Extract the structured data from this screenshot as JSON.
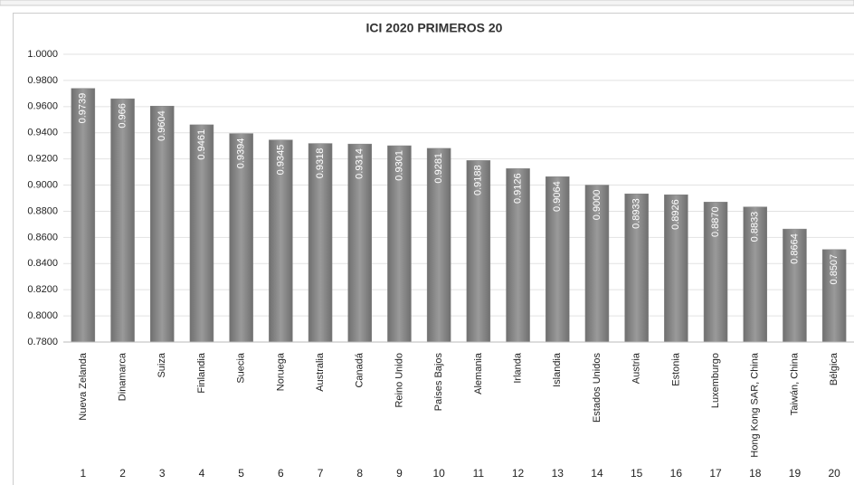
{
  "chart_data": {
    "type": "bar",
    "title": "ICI 2020 PRIMEROS 20",
    "categories": [
      "Nueva Zelanda",
      "Dinamarca",
      "Suiza",
      "Finlandia",
      "Suecia",
      "Noruega",
      "Australia",
      "Canadá",
      "Reino Unido",
      "Países Bajos",
      "Alemania",
      "Irlanda",
      "Islandia",
      "Estados Unidos",
      "Austria",
      "Estonia",
      "Luxemburgo",
      "Hong Kong SAR, China",
      "Taiwán, China",
      "Bélgica"
    ],
    "ranks": [
      1,
      2,
      3,
      4,
      5,
      6,
      7,
      8,
      9,
      10,
      11,
      12,
      13,
      14,
      15,
      16,
      17,
      18,
      19,
      20
    ],
    "values": [
      0.9739,
      0.966,
      0.9604,
      0.9461,
      0.9394,
      0.9345,
      0.9318,
      0.9314,
      0.9301,
      0.9281,
      0.9188,
      0.9126,
      0.9064,
      0.9,
      0.8933,
      0.8926,
      0.887,
      0.8833,
      0.8664,
      0.8507
    ],
    "value_labels": [
      "0.9739",
      "0.966",
      "0.9604",
      "0.9461",
      "0.9394",
      "0.9345",
      "0.9318",
      "0.9314",
      "0.9301",
      "0.9281",
      "0.9188",
      "0.9126",
      "0.9064",
      "0.9000",
      "0.8933",
      "0.8926",
      "0.8870",
      "0.8833",
      "0.8664",
      "0.8507"
    ],
    "color": "#858585",
    "ylim": [
      0.78,
      1.0
    ],
    "yticks": [
      {
        "value": 0.78,
        "label": "0.7800"
      },
      {
        "value": 0.8,
        "label": "0.8000"
      },
      {
        "value": 0.82,
        "label": "0.8200"
      },
      {
        "value": 0.84,
        "label": "0.8400"
      },
      {
        "value": 0.86,
        "label": "0.8600"
      },
      {
        "value": 0.88,
        "label": "0.8800"
      },
      {
        "value": 0.9,
        "label": "0.9000"
      },
      {
        "value": 0.92,
        "label": "0.9200"
      },
      {
        "value": 0.94,
        "label": "0.9400"
      },
      {
        "value": 0.96,
        "label": "0.9600"
      },
      {
        "value": 0.98,
        "label": "0.9800"
      },
      {
        "value": 1.0,
        "label": "1.0000"
      }
    ],
    "grid": true
  }
}
